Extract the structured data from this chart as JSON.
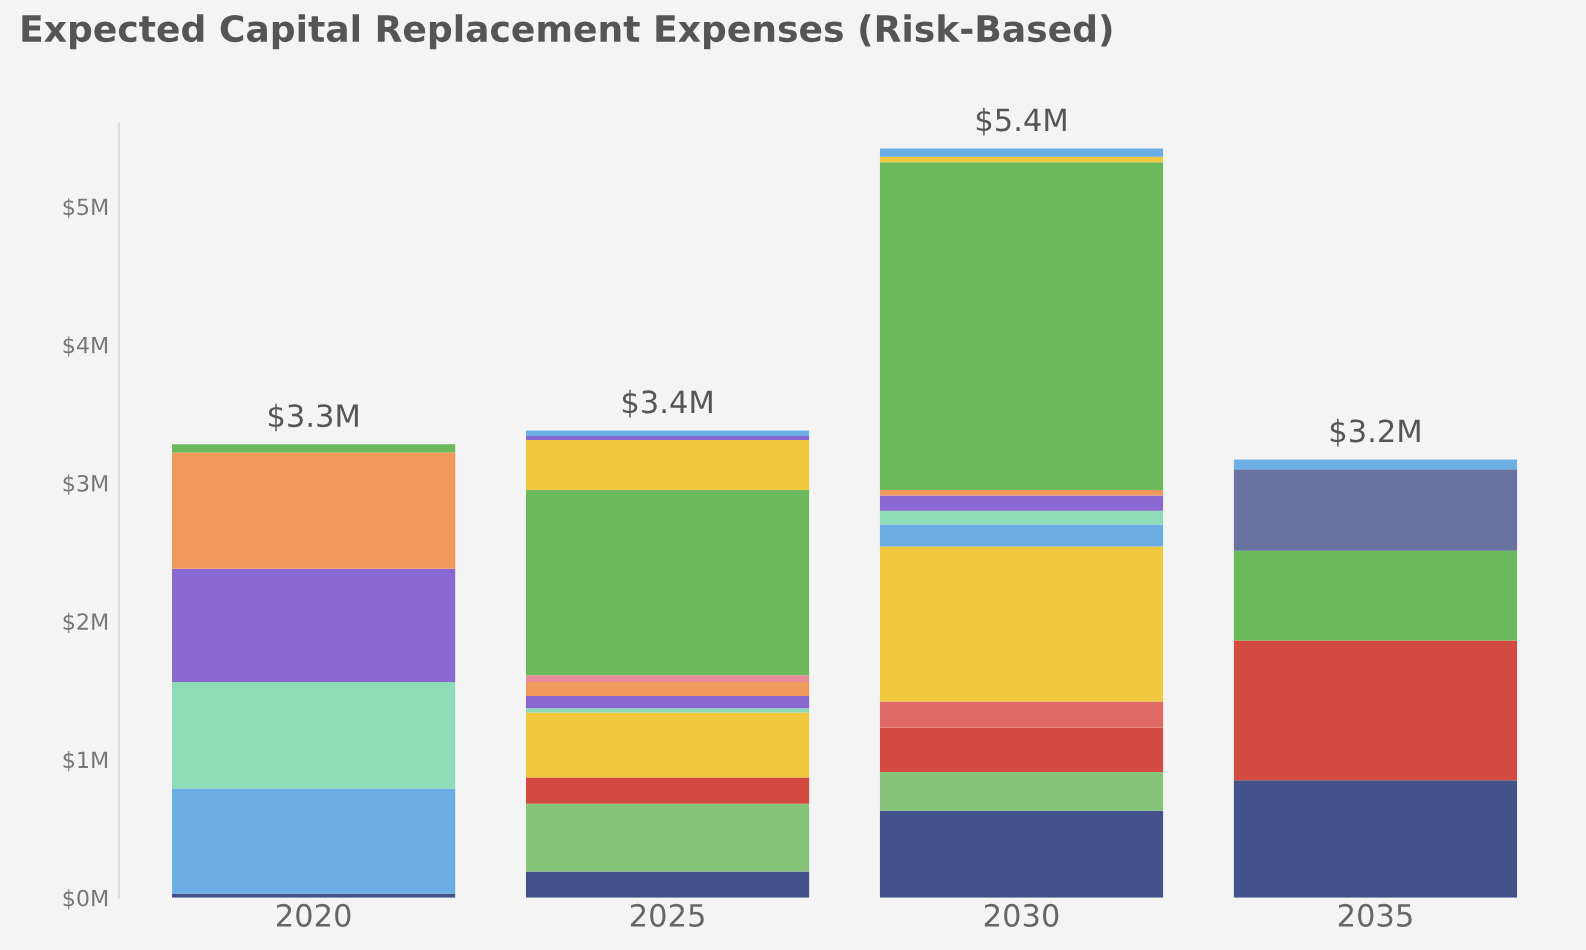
{
  "chart_data": {
    "type": "bar",
    "title": "Expected Capital Replacement Expenses (Risk-Based)",
    "stacked": true,
    "categories": [
      "2020",
      "2025",
      "2030",
      "2035"
    ],
    "series": [
      {
        "values": [
          0.03,
          0.19,
          0.63,
          0.85
        ],
        "colors": [
          "#44528c",
          "#44528c",
          "#44528c",
          "#44528c"
        ]
      },
      {
        "values": [
          0.76,
          0.49,
          0.28,
          1.01
        ],
        "colors": [
          "#6aaee3",
          "#86c47a",
          "#86c47a",
          "#d34b40"
        ]
      },
      {
        "values": [
          0.77,
          0.19,
          0.32,
          0.65
        ],
        "colors": [
          "#8edbb8",
          "#d34b40",
          "#d34b40",
          "#6cb85c"
        ]
      },
      {
        "values": [
          0.82,
          0.47,
          0.19,
          0.59
        ],
        "colors": [
          "#8a68d2",
          "#f0c83e",
          "#df6a63",
          "#6873a2"
        ]
      },
      {
        "values": [
          0.84,
          0.03,
          1.12,
          0.07
        ],
        "colors": [
          "#ef9a5c",
          "#8edbb8",
          "#f0c83e",
          "#6db0e6"
        ]
      },
      {
        "values": [
          0.06,
          0.09,
          0.16,
          null
        ],
        "colors": [
          "#6cb85c",
          "#8a68d2",
          "#6aaee3",
          "#6db0e6"
        ]
      },
      {
        "values": [
          null,
          0.1,
          0.1,
          null
        ],
        "colors": [
          "#6cb85c",
          "#ef9a5c",
          "#8edbb8",
          "#6db0e6"
        ]
      },
      {
        "values": [
          null,
          0.05,
          0.11,
          null
        ],
        "colors": [
          "#6cb85c",
          "#e88a9a",
          "#8a68d2",
          "#6db0e6"
        ]
      },
      {
        "values": [
          null,
          1.34,
          0.04,
          null
        ],
        "colors": [
          "#6cb85c",
          "#6cb85c",
          "#ef9a5c",
          "#6db0e6"
        ]
      },
      {
        "values": [
          null,
          0.36,
          2.37,
          null
        ],
        "colors": [
          "#6cb85c",
          "#f0c83e",
          "#6cb85c",
          "#6db0e6"
        ]
      },
      {
        "values": [
          null,
          0.03,
          0.04,
          null
        ],
        "colors": [
          "#6cb85c",
          "#8a68d2",
          "#f0c83e",
          "#6db0e6"
        ]
      },
      {
        "values": [
          null,
          0.04,
          0.06,
          null
        ],
        "colors": [
          "#6cb85c",
          "#6db0e6",
          "#6aaee3",
          "#6db0e6"
        ]
      }
    ],
    "totals": [
      "$3.3M",
      "$3.4M",
      "$5.4M",
      "$3.2M"
    ],
    "ylim": [
      0,
      5.6
    ],
    "yticks": [
      {
        "value": 0,
        "label": "$0M"
      },
      {
        "value": 1,
        "label": "$1M"
      },
      {
        "value": 2,
        "label": "$2M"
      },
      {
        "value": 3,
        "label": "$3M"
      },
      {
        "value": 4,
        "label": "$4M"
      },
      {
        "value": 5,
        "label": "$5M"
      }
    ],
    "grid": false
  }
}
